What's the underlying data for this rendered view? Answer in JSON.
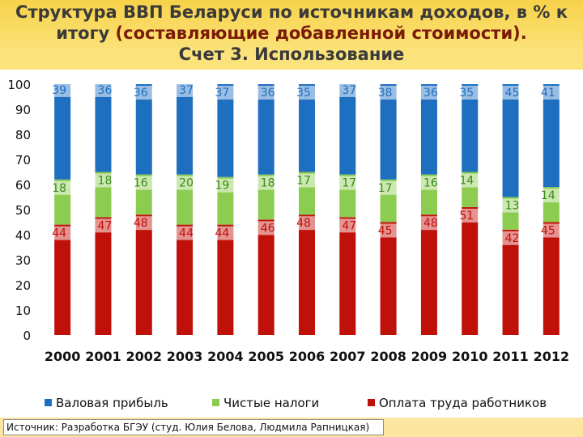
{
  "title": {
    "line1_prefix": "Структура ВВП Беларуси по источникам доходов, в % к",
    "line2_prefix": "итогу ",
    "line2_highlight": "(составляющие добавленной стоимости).",
    "line3": "Счет 3. Использование"
  },
  "legend": {
    "gross_profit": "Валовая прибыль",
    "net_taxes": "Чистые налоги",
    "wages": "Оплата труда работников"
  },
  "source": "Источник: Разработка БГЭУ (студ. Юлия Белова, Людмила Рапницкая)",
  "colors": {
    "gross_profit": "#1f6fc0",
    "net_taxes": "#8ccc50",
    "wages": "#c0100a",
    "label_blue": "#1f6fc0",
    "label_green": "#3a8a1a",
    "label_red": "#c0100a"
  },
  "chart_data": {
    "type": "bar",
    "stacked": true,
    "title": "Структура ВВП Беларуси по источникам доходов, в % к итогу (составляющие добавленной стоимости). Счет 3. Использование",
    "categories": [
      "2000",
      "2001",
      "2002",
      "2003",
      "2004",
      "2005",
      "2006",
      "2007",
      "2008",
      "2009",
      "2010",
      "2011",
      "2012"
    ],
    "yticks": [
      0,
      10,
      20,
      30,
      40,
      50,
      60,
      70,
      80,
      90,
      100
    ],
    "ylim": [
      0,
      100
    ],
    "series": [
      {
        "key": "wages",
        "name": "Оплата труда работников",
        "values": [
          44,
          47,
          48,
          44,
          44,
          46,
          48,
          47,
          45,
          48,
          51,
          42,
          45
        ]
      },
      {
        "key": "net_taxes",
        "name": "Чистые налоги",
        "values": [
          18,
          18,
          16,
          20,
          19,
          18,
          17,
          17,
          17,
          16,
          14,
          13,
          14
        ]
      },
      {
        "key": "gross_profit",
        "name": "Валовая прибыль",
        "values": [
          39,
          36,
          36,
          37,
          37,
          36,
          35,
          37,
          38,
          36,
          35,
          45,
          41
        ]
      }
    ]
  }
}
